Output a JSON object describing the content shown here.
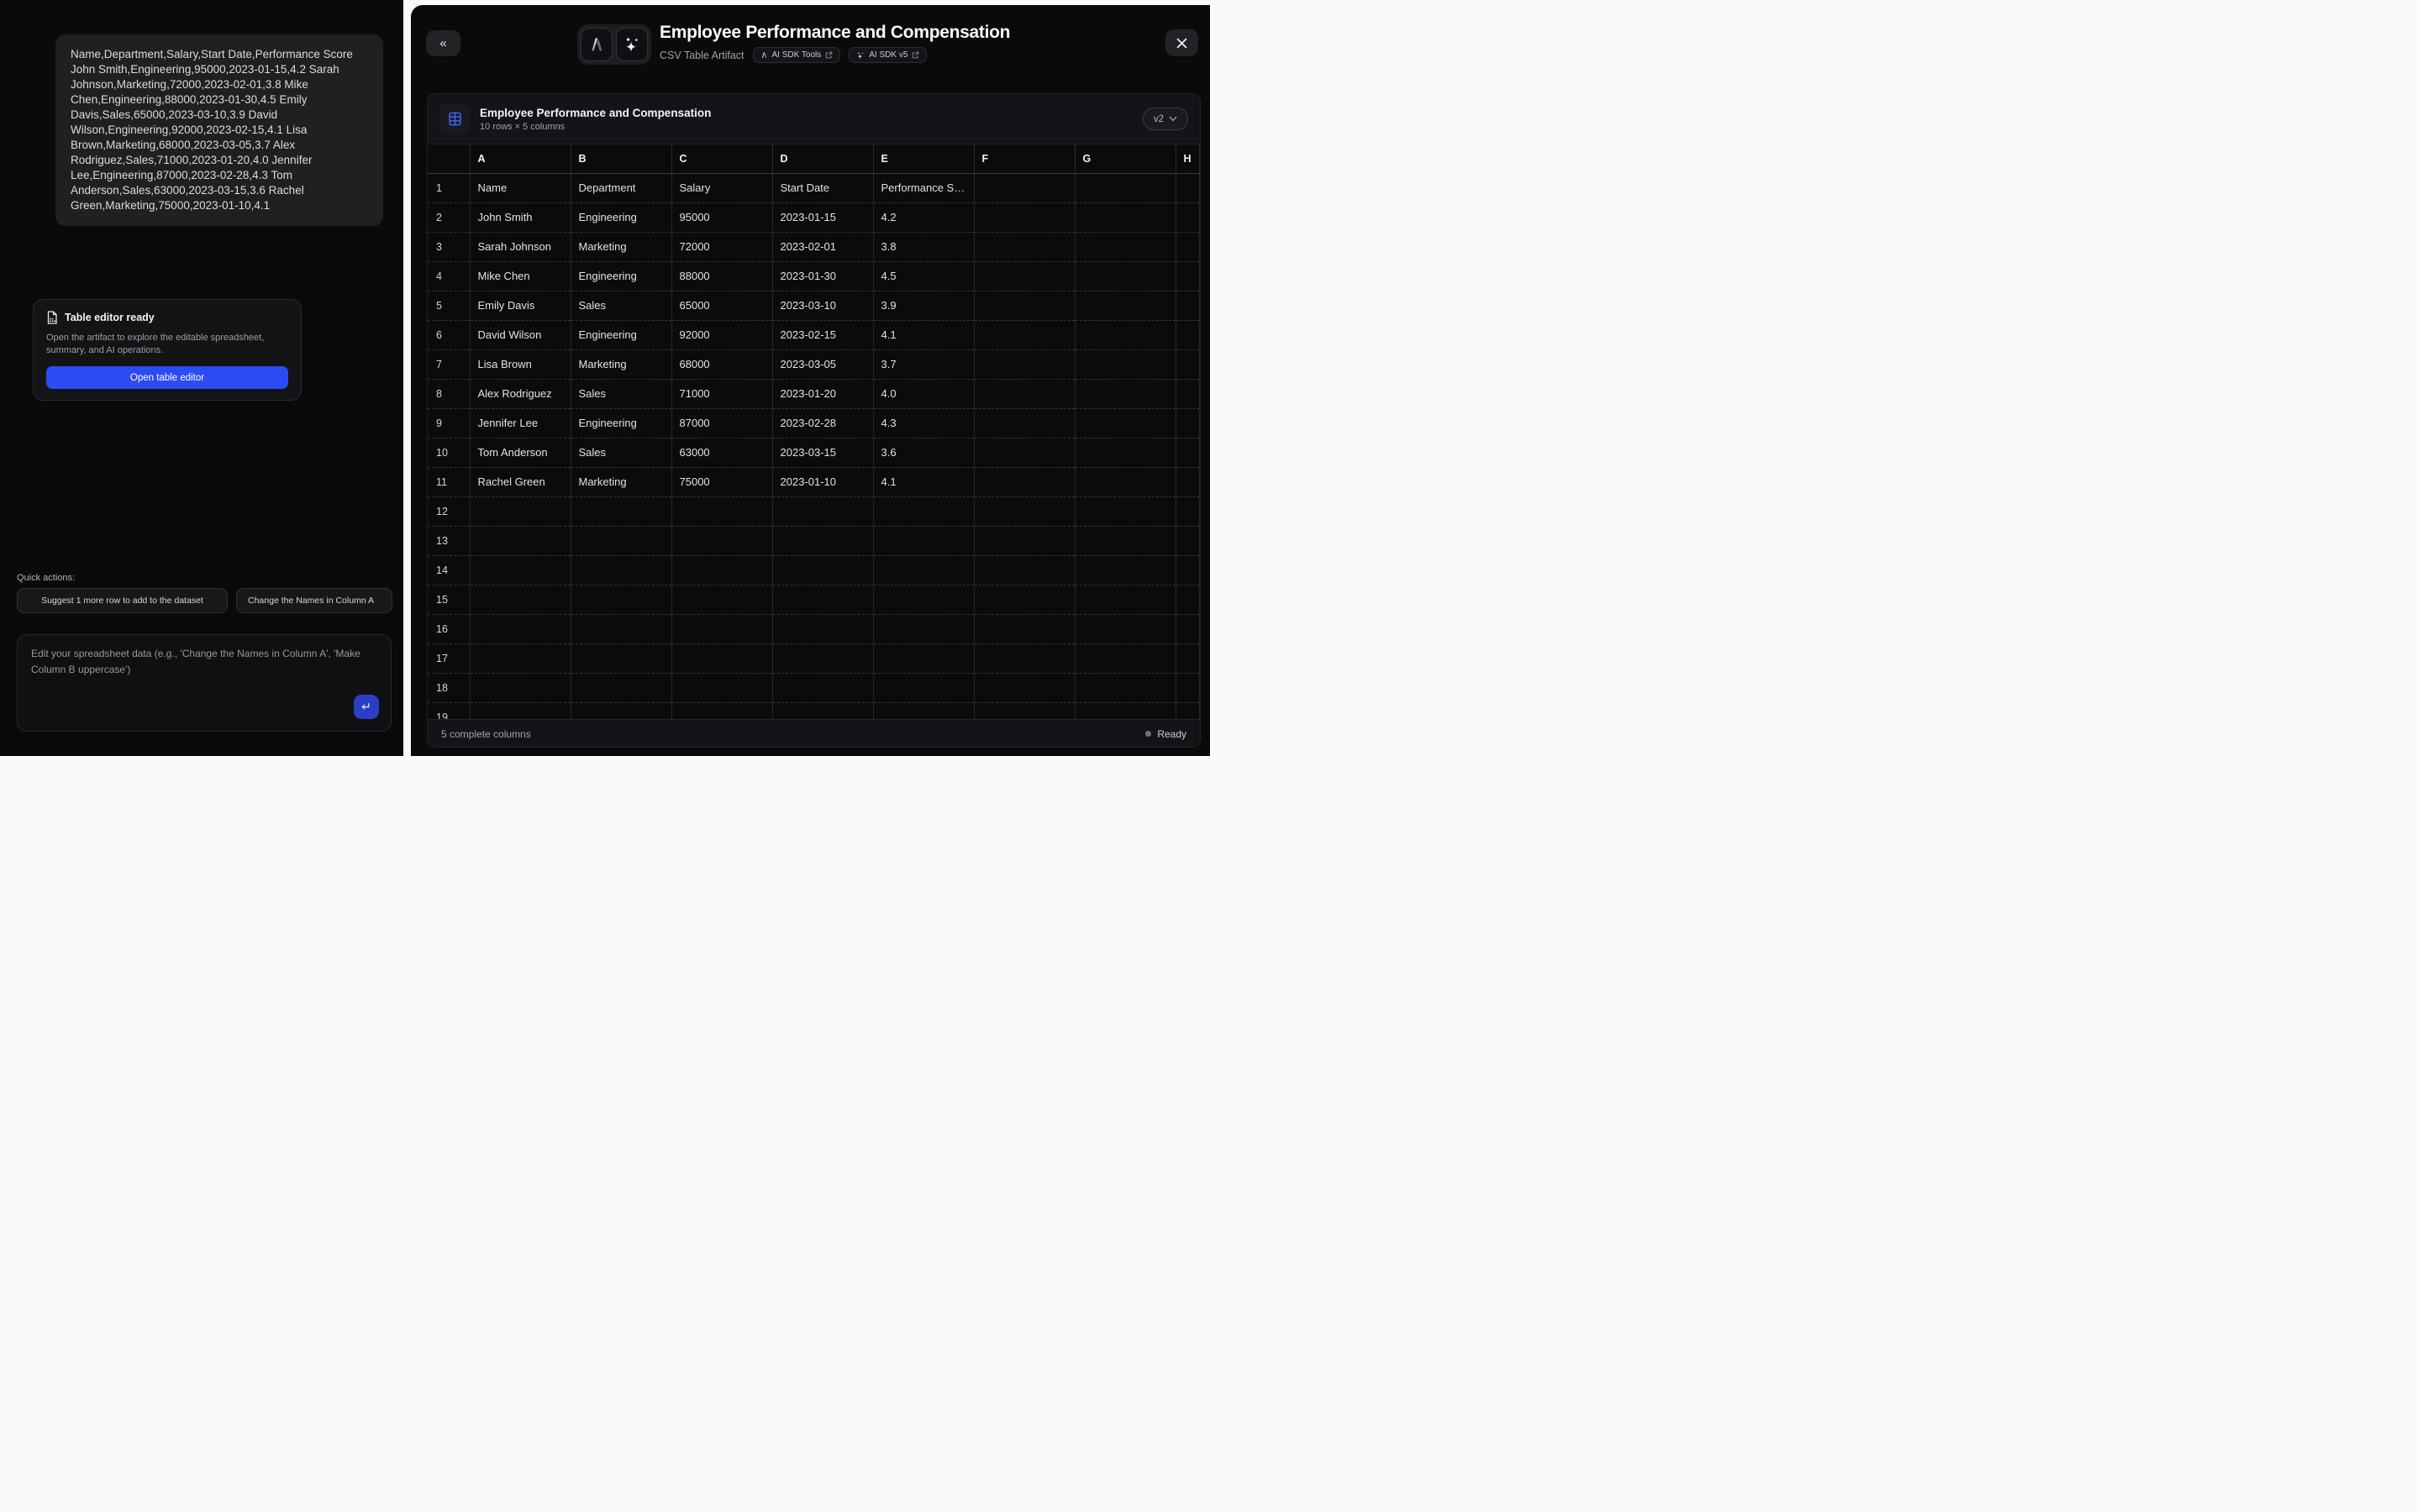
{
  "chat": {
    "csv_message": "Name,Department,Salary,Start Date,Performance Score John Smith,Engineering,95000,2023-01-15,4.2 Sarah Johnson,Marketing,72000,2023-02-01,3.8 Mike Chen,Engineering,88000,2023-01-30,4.5 Emily Davis,Sales,65000,2023-03-10,3.9 David Wilson,Engineering,92000,2023-02-15,4.1 Lisa Brown,Marketing,68000,2023-03-05,3.7 Alex Rodriguez,Sales,71000,2023-01-20,4.0 Jennifer Lee,Engineering,87000,2023-02-28,4.3 Tom Anderson,Sales,63000,2023-03-15,3.6 Rachel Green,Marketing,75000,2023-01-10,4.1",
    "notice": {
      "title": "Table editor ready",
      "body": "Open the artifact to explore the editable spreadsheet, summary, and AI operations.",
      "button": "Open table editor"
    },
    "quick_actions_label": "Quick actions:",
    "quick_actions": [
      "Suggest 1 more row to add to the dataset",
      "Change the Names in Column A"
    ],
    "input_placeholder": "Edit your spreadsheet data (e.g., 'Change the Names in Column A', 'Make Column B uppercase')",
    "send_glyph": "↵"
  },
  "artifact": {
    "collapse_glyph": "«",
    "title": "Employee Performance and Compensation",
    "subtitle": "CSV Table Artifact",
    "badges": [
      {
        "label": "AI SDK Tools"
      },
      {
        "label": "AI SDK v5"
      }
    ],
    "table": {
      "title": "Employee Performance and Compensation",
      "meta": "10 rows × 5 columns",
      "version": "v2",
      "columns": [
        "A",
        "B",
        "C",
        "D",
        "E",
        "F",
        "G",
        "H"
      ],
      "visible_rows": 19,
      "rows": [
        [
          "Name",
          "Department",
          "Salary",
          "Start Date",
          "Performance Score"
        ],
        [
          "John Smith",
          "Engineering",
          "95000",
          "2023-01-15",
          "4.2"
        ],
        [
          "Sarah Johnson",
          "Marketing",
          "72000",
          "2023-02-01",
          "3.8"
        ],
        [
          "Mike Chen",
          "Engineering",
          "88000",
          "2023-01-30",
          "4.5"
        ],
        [
          "Emily Davis",
          "Sales",
          "65000",
          "2023-03-10",
          "3.9"
        ],
        [
          "David Wilson",
          "Engineering",
          "92000",
          "2023-02-15",
          "4.1"
        ],
        [
          "Lisa Brown",
          "Marketing",
          "68000",
          "2023-03-05",
          "3.7"
        ],
        [
          "Alex Rodriguez",
          "Sales",
          "71000",
          "2023-01-20",
          "4.0"
        ],
        [
          "Jennifer Lee",
          "Engineering",
          "87000",
          "2023-02-28",
          "4.3"
        ],
        [
          "Tom Anderson",
          "Sales",
          "63000",
          "2023-03-15",
          "3.6"
        ],
        [
          "Rachel Green",
          "Marketing",
          "75000",
          "2023-01-10",
          "4.1"
        ]
      ],
      "status_left": "5 complete columns",
      "status_right": "Ready"
    }
  },
  "colors": {
    "accent_blue": "#2b4cf2",
    "send_blue": "#2b3fc4",
    "grid_icon_blue": "#3b64f2",
    "panel_bg": "#0a0a0a",
    "card_bg": "#141418"
  }
}
